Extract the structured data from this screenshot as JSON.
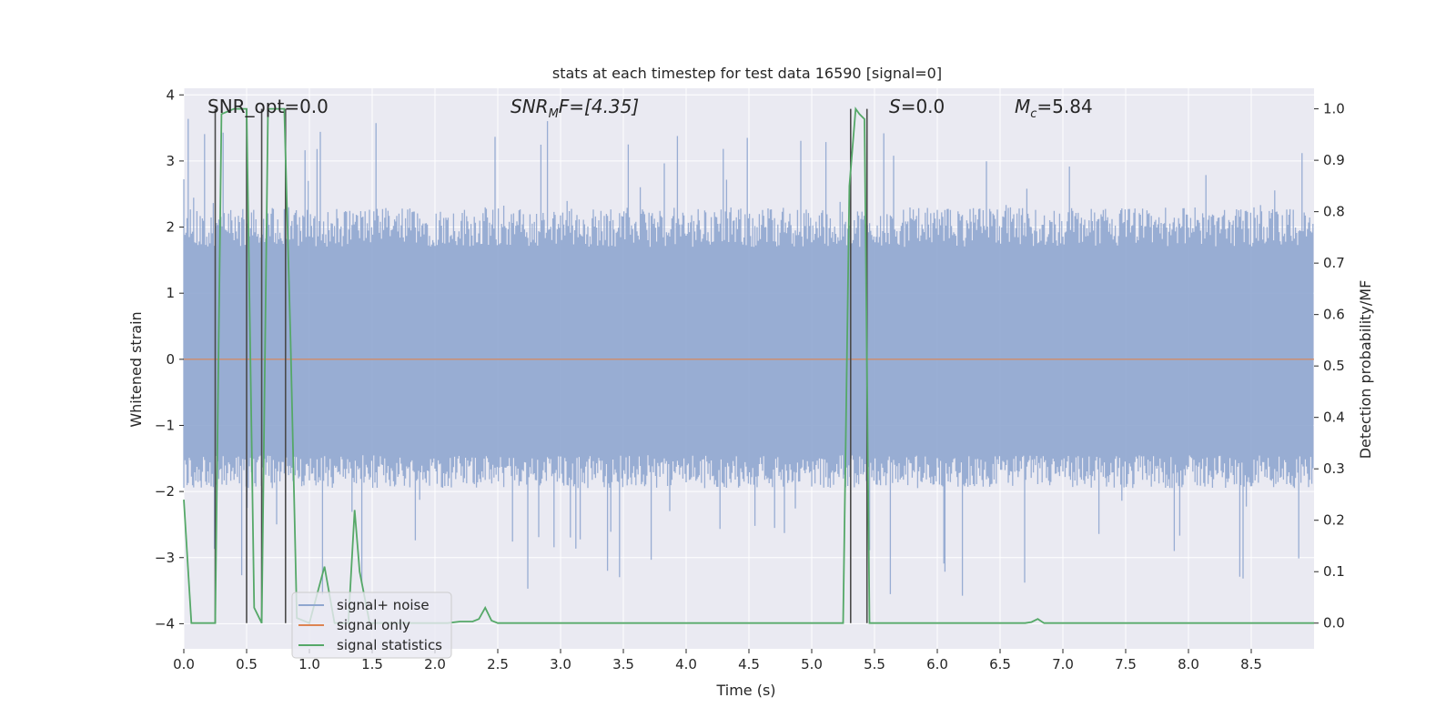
{
  "chart_data": {
    "type": "line",
    "title": "stats at each timestep for test data 16590 [signal=0]",
    "xlabel": "Time (s)",
    "ylabel_left": "Whitened strain",
    "ylabel_right": "Detection probability/MF",
    "xlim": [
      0.0,
      9.0
    ],
    "ylim_left": [
      -4.38,
      4.1
    ],
    "ylim_right": [
      -0.05,
      1.04
    ],
    "x_ticks": [
      0.0,
      0.5,
      1.0,
      1.5,
      2.0,
      2.5,
      3.0,
      3.5,
      4.0,
      4.5,
      5.0,
      5.5,
      6.0,
      6.5,
      7.0,
      7.5,
      8.0,
      8.5
    ],
    "x_tick_labels": [
      "0.0",
      "0.5",
      "1.0",
      "1.5",
      "2.0",
      "2.5",
      "3.0",
      "3.5",
      "4.0",
      "4.5",
      "5.0",
      "5.5",
      "6.0",
      "6.5",
      "7.0",
      "7.5",
      "8.0",
      "8.5"
    ],
    "y_left_ticks": [
      4,
      3,
      2,
      1,
      0,
      -1,
      -2,
      -3,
      -4
    ],
    "y_left_tick_labels": [
      "4",
      "3",
      "2",
      "1",
      "0",
      "−1",
      "−2",
      "−3",
      "−4"
    ],
    "y_right_ticks": [
      1.0,
      0.9,
      0.8,
      0.7,
      0.6,
      0.5,
      0.4,
      0.3,
      0.2,
      0.1,
      0.0
    ],
    "y_right_tick_labels": [
      "1.0",
      "0.9",
      "0.8",
      "0.7",
      "0.6",
      "0.5",
      "0.4",
      "0.3",
      "0.2",
      "0.1",
      "0.0"
    ],
    "grid": true,
    "legend_position": "lower-left",
    "annotations": {
      "snr_opt": "SNR_opt=0.0",
      "snr_mf_var": "SNR",
      "snr_mf_sub": "M",
      "snr_mf_rest": "F=[4.35]",
      "s_var": "S",
      "s_rest": "=0.0",
      "mc_var": "M",
      "mc_sub": "c",
      "mc_rest": "=5.84"
    },
    "series": [
      {
        "name": "signal+ noise",
        "color": "#8fa6cf",
        "noise_summary": {
          "x_range": [
            0.0,
            9.0
          ],
          "typical_min": -1.7,
          "typical_max": 2.0,
          "peak_min": -3.6,
          "peak_max": 3.7
        }
      },
      {
        "name": "signal only",
        "color": "#dd8452",
        "x": [
          0.0,
          9.0
        ],
        "y": [
          0.0,
          0.0
        ]
      },
      {
        "name": "signal statistics",
        "color": "#55a868",
        "axis": "right",
        "x": [
          0.0,
          0.06,
          0.25,
          0.3,
          0.4,
          0.5,
          0.56,
          0.62,
          0.67,
          0.75,
          0.8,
          0.85,
          0.9,
          1.0,
          1.12,
          1.2,
          1.26,
          1.31,
          1.36,
          1.4,
          1.48,
          1.52,
          1.6,
          1.7,
          1.8,
          1.9,
          2.0,
          2.1,
          2.2,
          2.25,
          2.3,
          2.35,
          2.4,
          2.45,
          2.5,
          2.55,
          3.0,
          4.0,
          5.0,
          5.25,
          5.3,
          5.35,
          5.38,
          5.42,
          5.46,
          5.5,
          6.0,
          6.5,
          6.7,
          6.75,
          6.8,
          6.85,
          7.0,
          8.0,
          9.0
        ],
        "y": [
          0.24,
          0.0,
          0.0,
          0.99,
          1.0,
          1.0,
          0.03,
          0.0,
          1.0,
          1.0,
          1.0,
          0.55,
          0.01,
          0.0,
          0.11,
          0.0,
          0.0,
          0.0,
          0.22,
          0.1,
          0.0,
          0.0,
          0.0,
          0.0,
          0.0,
          0.0,
          0.0,
          0.0,
          0.003,
          0.003,
          0.003,
          0.008,
          0.03,
          0.005,
          0.0,
          0.0,
          0.0,
          0.0,
          0.0,
          0.0,
          0.85,
          1.0,
          0.99,
          0.98,
          0.0,
          0.0,
          0.0,
          0.0,
          0.0,
          0.002,
          0.008,
          0.0,
          0.0,
          0.0,
          0.0
        ]
      }
    ],
    "vertical_lines": {
      "color": "#4a4a4a",
      "x": [
        0.25,
        0.5,
        0.62,
        0.81,
        5.31,
        5.44
      ]
    }
  },
  "legend": {
    "items": [
      "signal+ noise",
      "signal only",
      "signal statistics"
    ]
  }
}
